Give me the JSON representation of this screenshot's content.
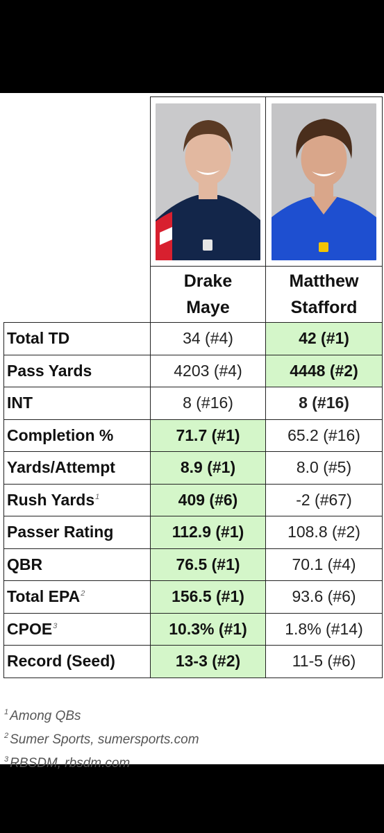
{
  "players": [
    {
      "first": "Drake",
      "last": "Maye",
      "jersey_color": "#13264a",
      "accent": "#d8202f",
      "skin": "#e2b8a0",
      "hair": "#5a3a24"
    },
    {
      "first": "Matthew",
      "last": "Stafford",
      "jersey_color": "#1e4fd0",
      "accent": "#f2c400",
      "skin": "#d9a68a",
      "hair": "#4a2e1c"
    }
  ],
  "rows": [
    {
      "label": "Total TD",
      "sup": "",
      "maye": "34 (#4)",
      "stafford": "42 (#1)",
      "best": "stafford"
    },
    {
      "label": "Pass Yards",
      "sup": "",
      "maye": "4203 (#4)",
      "stafford": "4448 (#2)",
      "best": "stafford"
    },
    {
      "label": "INT",
      "sup": "",
      "maye": "8 (#16)",
      "stafford": "8 (#16)",
      "best": "none"
    },
    {
      "label": "Completion %",
      "sup": "",
      "maye": "71.7 (#1)",
      "stafford": "65.2 (#16)",
      "best": "maye"
    },
    {
      "label": "Yards/Attempt",
      "sup": "",
      "maye": "8.9 (#1)",
      "stafford": "8.0 (#5)",
      "best": "maye"
    },
    {
      "label": "Rush Yards",
      "sup": "1",
      "maye": "409 (#6)",
      "stafford": "-2 (#67)",
      "best": "maye"
    },
    {
      "label": "Passer Rating",
      "sup": "",
      "maye": "112.9 (#1)",
      "stafford": "108.8 (#2)",
      "best": "maye"
    },
    {
      "label": "QBR",
      "sup": "",
      "maye": "76.5 (#1)",
      "stafford": "70.1 (#4)",
      "best": "maye"
    },
    {
      "label": "Total EPA",
      "sup": "2",
      "maye": "156.5 (#1)",
      "stafford": "93.6 (#6)",
      "best": "maye"
    },
    {
      "label": "CPOE",
      "sup": "3",
      "maye": "10.3% (#1)",
      "stafford": "1.8% (#14)",
      "best": "maye"
    },
    {
      "label": "Record (Seed)",
      "sup": "",
      "maye": "13-3 (#2)",
      "stafford": "11-5 (#6)",
      "best": "maye"
    }
  ],
  "footnotes": [
    {
      "num": "1",
      "text": "Among QBs"
    },
    {
      "num": "2",
      "text": "Sumer Sports, sumersports.com"
    },
    {
      "num": "3",
      "text": "RBSDM, rbsdm.com"
    }
  ]
}
